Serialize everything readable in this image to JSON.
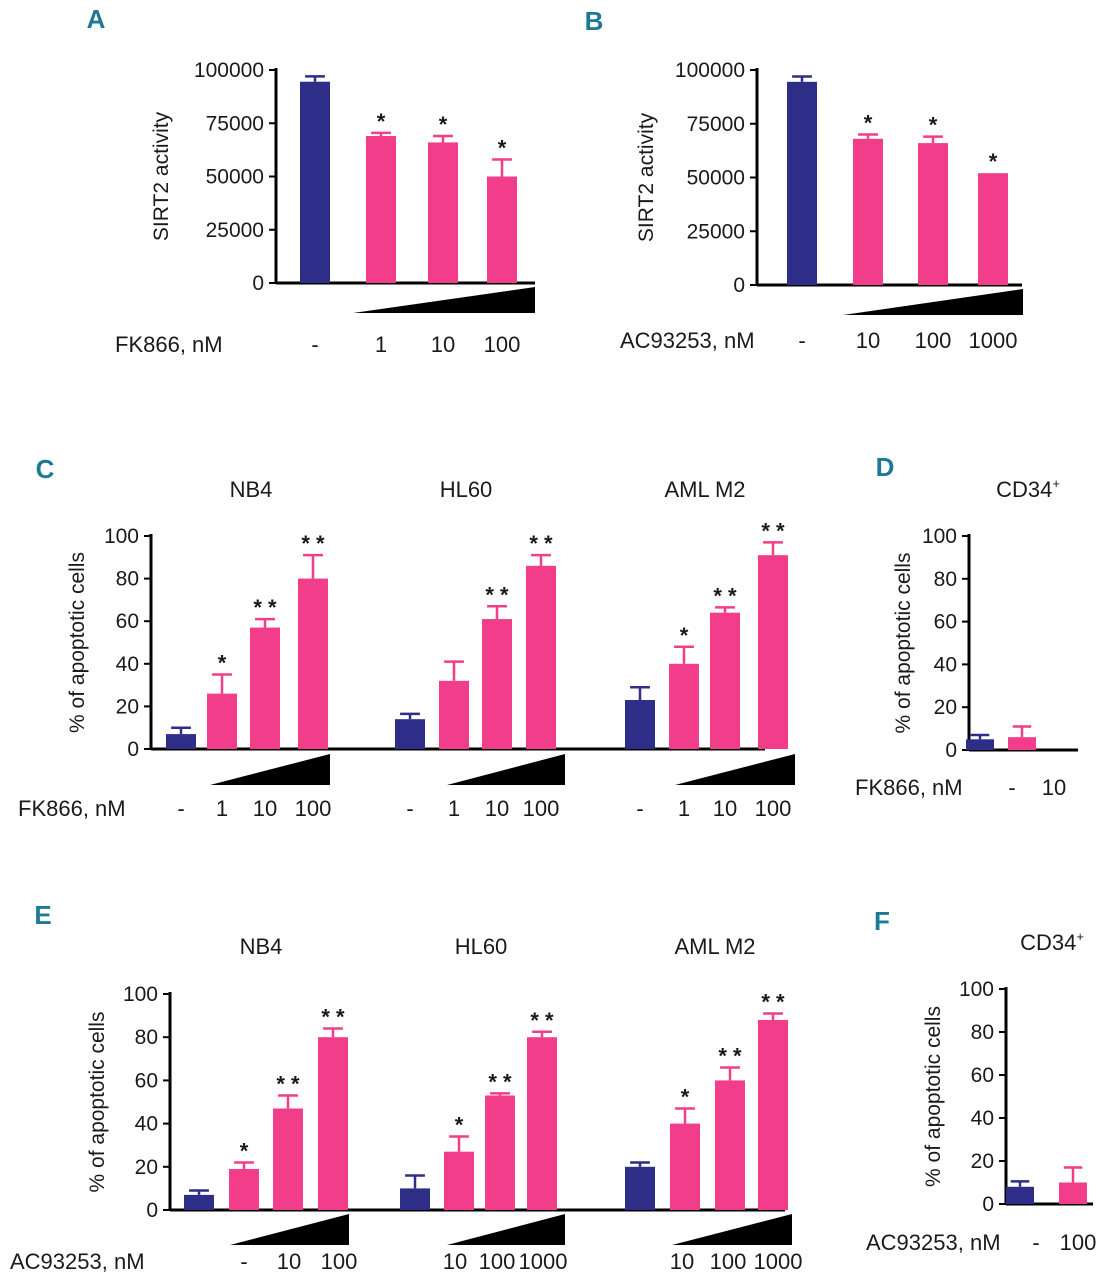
{
  "colors": {
    "control": "#2e2d87",
    "treated": "#f23d8a",
    "axis": "#000000",
    "ramp": "#000000",
    "letter": "#1f7896"
  },
  "chart_data": [
    {
      "id": "A",
      "type": "bar",
      "panel": "A",
      "ylabel": "SIRT2 activity",
      "ylim": [
        0,
        100000
      ],
      "yticks": [
        "100000",
        "75000",
        "50000",
        "25000",
        "0"
      ],
      "ytick_values": [
        100000,
        75000,
        50000,
        25000,
        0
      ],
      "condition_label": "FK866, nM",
      "groups": [
        {
          "title": "",
          "categories": [
            "-",
            "1",
            "10",
            "100"
          ],
          "values": [
            94500,
            69000,
            66000,
            50000
          ],
          "errors": [
            2500,
            1500,
            3000,
            8000
          ],
          "stars": [
            "",
            "*",
            "*",
            "*"
          ]
        }
      ]
    },
    {
      "id": "B",
      "type": "bar",
      "panel": "B",
      "ylabel": "SIRT2 activity",
      "ylim": [
        0,
        100000
      ],
      "yticks": [
        "100000",
        "75000",
        "50000",
        "25000",
        "0"
      ],
      "ytick_values": [
        100000,
        75000,
        50000,
        25000,
        0
      ],
      "condition_label": "AC93253, nM",
      "groups": [
        {
          "title": "",
          "categories": [
            "-",
            "10",
            "100",
            "1000"
          ],
          "values": [
            94500,
            68000,
            66000,
            52000
          ],
          "errors": [
            2500,
            2000,
            3000,
            0
          ],
          "stars": [
            "",
            "*",
            "*",
            "*"
          ]
        }
      ]
    },
    {
      "id": "C",
      "type": "bar",
      "panel": "C",
      "ylabel": "% of apoptotic cells",
      "ylim": [
        0,
        100
      ],
      "yticks": [
        "100",
        "80",
        "60",
        "40",
        "20",
        "0"
      ],
      "ytick_values": [
        100,
        80,
        60,
        40,
        20,
        0
      ],
      "condition_label": "FK866, nM",
      "groups": [
        {
          "title": "NB4",
          "categories": [
            "-",
            "1",
            "10",
            "100"
          ],
          "values": [
            7,
            26,
            57,
            80
          ],
          "errors": [
            3,
            9,
            4,
            11
          ],
          "stars": [
            "",
            "*",
            "* *",
            "* *"
          ]
        },
        {
          "title": "HL60",
          "categories": [
            "-",
            "1",
            "10",
            "100"
          ],
          "values": [
            14,
            32,
            61,
            86
          ],
          "errors": [
            2.5,
            9,
            6,
            5
          ],
          "stars": [
            "",
            "",
            "* *",
            "* *"
          ]
        },
        {
          "title": "AML M2",
          "categories": [
            "-",
            "1",
            "10",
            "100"
          ],
          "values": [
            23,
            40,
            64,
            91
          ],
          "errors": [
            6,
            8,
            2.5,
            6
          ],
          "stars": [
            "",
            "*",
            "* *",
            "* *"
          ]
        }
      ]
    },
    {
      "id": "D",
      "type": "bar",
      "panel": "D",
      "ylabel": "% of apoptotic cells",
      "ylim": [
        0,
        100
      ],
      "yticks": [
        "100",
        "80",
        "60",
        "40",
        "20",
        "0"
      ],
      "ytick_values": [
        100,
        80,
        60,
        40,
        20,
        0
      ],
      "condition_label": "FK866, nM",
      "title_main": "CD34",
      "title_sup": "+",
      "groups": [
        {
          "title": "",
          "categories": [
            "-",
            "10"
          ],
          "values": [
            5,
            6
          ],
          "errors": [
            2,
            5
          ],
          "stars": [
            "",
            ""
          ]
        }
      ]
    },
    {
      "id": "E",
      "type": "bar",
      "panel": "E",
      "ylabel": "% of apoptotic cells",
      "ylim": [
        0,
        100
      ],
      "yticks": [
        "100",
        "80",
        "60",
        "40",
        "20",
        "0"
      ],
      "ytick_values": [
        100,
        80,
        60,
        40,
        20,
        0
      ],
      "condition_label": "AC93253, nM",
      "groups": [
        {
          "title": "NB4",
          "categories": [
            "",
            "-",
            "10",
            "100"
          ],
          "values": [
            7,
            19,
            47,
            80
          ],
          "errors": [
            2,
            3,
            6,
            4
          ],
          "stars": [
            "",
            "*",
            "* *",
            "* *"
          ]
        },
        {
          "title": "HL60",
          "categories": [
            "",
            "10",
            "100",
            "1000"
          ],
          "values": [
            10,
            27,
            53,
            80
          ],
          "errors": [
            6,
            7,
            1,
            2.5
          ],
          "stars": [
            "",
            "*",
            "* *",
            "* *"
          ]
        },
        {
          "title": "AML M2",
          "categories": [
            "",
            "10",
            "100",
            "1000"
          ],
          "values": [
            20,
            40,
            60,
            88
          ],
          "errors": [
            2,
            7,
            6,
            3
          ],
          "stars": [
            "",
            "*",
            "* *",
            "* *"
          ]
        }
      ]
    },
    {
      "id": "F",
      "type": "bar",
      "panel": "F",
      "ylabel": "% of apoptotic cells",
      "ylim": [
        0,
        100
      ],
      "yticks": [
        "100",
        "80",
        "60",
        "40",
        "20",
        "0"
      ],
      "ytick_values": [
        100,
        80,
        60,
        40,
        20,
        0
      ],
      "condition_label": "AC93253, nM",
      "title_main": "CD34",
      "title_sup": "+",
      "groups": [
        {
          "title": "",
          "categories": [
            "-",
            "100"
          ],
          "values": [
            8,
            10
          ],
          "errors": [
            2.5,
            7
          ],
          "stars": [
            "",
            ""
          ]
        }
      ]
    }
  ]
}
